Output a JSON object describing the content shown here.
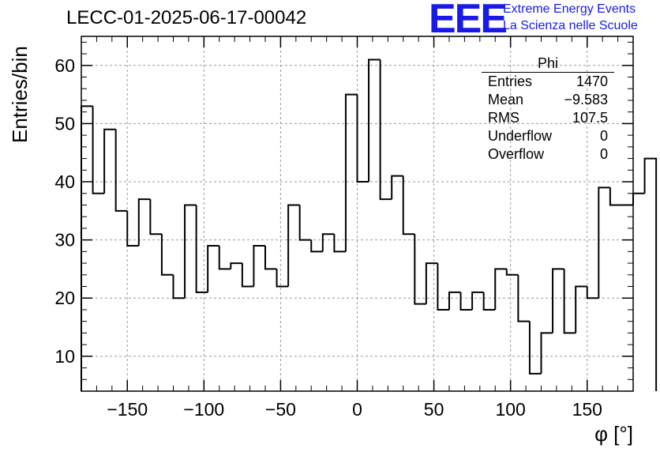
{
  "header": {
    "run_title": "LECC-01-2025-06-17-00042",
    "logo_text": "EEE",
    "logo_line1": "Extreme Energy Events",
    "logo_line2": "La Scienza nelle Scuole"
  },
  "stats_box": {
    "title": "Phi",
    "rows": [
      {
        "label": "Entries",
        "value": "1470"
      },
      {
        "label": "Mean",
        "value": "−9.583"
      },
      {
        "label": "RMS",
        "value": "107.5"
      },
      {
        "label": "Underflow",
        "value": "0"
      },
      {
        "label": "Overflow",
        "value": "0"
      }
    ]
  },
  "chart_data": {
    "type": "bar",
    "style": "step-histogram",
    "title": "LECC-01-2025-06-17-00042",
    "xlabel": "φ [°]",
    "ylabel": "Entries/bin",
    "xlim": [
      -180,
      180
    ],
    "ylim": [
      4,
      65
    ],
    "bin_width": 7.5,
    "x_ticks": [
      -150,
      -100,
      -50,
      0,
      50,
      100,
      150
    ],
    "x_tick_labels": [
      "−150",
      "−100",
      "−50",
      "0",
      "50",
      "100",
      "150"
    ],
    "y_ticks": [
      10,
      20,
      30,
      40,
      50,
      60
    ],
    "y_tick_labels": [
      "10",
      "20",
      "30",
      "40",
      "50",
      "60"
    ],
    "grid": true,
    "values": [
      53,
      38,
      49,
      35,
      29,
      37,
      31,
      24,
      20,
      36,
      21,
      29,
      25,
      26,
      22,
      29,
      25,
      22,
      36,
      30,
      28,
      31,
      28,
      55,
      40,
      61,
      37,
      41,
      31,
      19,
      26,
      18,
      21,
      18,
      21,
      18,
      25,
      24,
      16,
      7,
      14,
      25,
      14,
      22,
      20,
      39,
      36,
      36,
      38,
      44
    ],
    "colors": {
      "line": "#000000",
      "grid": "#9a9a9a"
    }
  }
}
